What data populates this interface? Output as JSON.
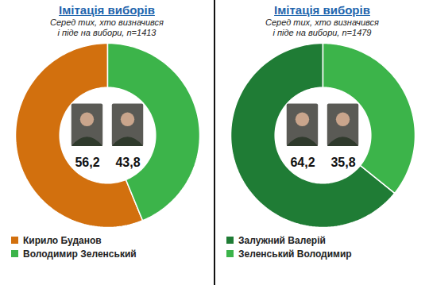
{
  "chart_data": [
    {
      "type": "donut",
      "title": "Імітація виборів",
      "subtitle": "Серед тих, хто визначився\nі піде на вибори, n=1413",
      "categories": [
        "Кирило Буданов",
        "Володимир Зеленський"
      ],
      "values": [
        56.2,
        43.8
      ],
      "value_labels": [
        "56,2",
        "43,8"
      ],
      "colors": [
        "#d2700e",
        "#3cb44a"
      ],
      "data_labels": true,
      "legend": "bottom"
    },
    {
      "type": "donut",
      "title": "Імітація виборів",
      "subtitle": "Серед тих, хто визначився\nі піде на вибори, n=1479",
      "categories": [
        "Залужний Валерій",
        "Зеленський Володимир"
      ],
      "values": [
        64.2,
        35.8
      ],
      "value_labels": [
        "64,2",
        "35,8"
      ],
      "colors": [
        "#1f7c35",
        "#3cb44a"
      ],
      "data_labels": true,
      "legend": "bottom"
    }
  ]
}
